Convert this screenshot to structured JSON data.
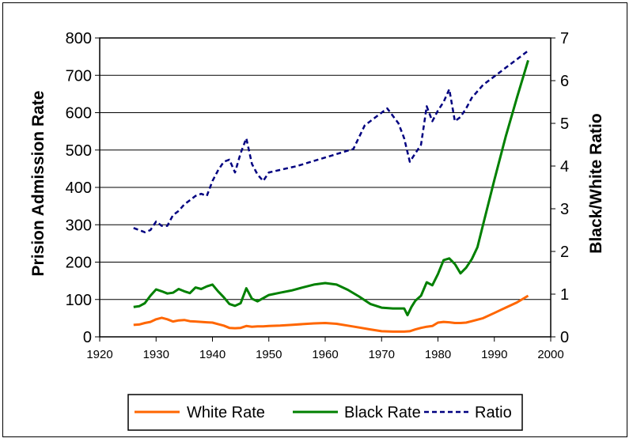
{
  "chart_data": {
    "type": "line",
    "title": "",
    "xlabel": "",
    "ylabel": "Prision Admission Rate",
    "y2label": "Black/White Ratio",
    "xlim": [
      1920,
      2000
    ],
    "ylim": [
      0,
      800
    ],
    "y2lim": [
      0,
      7
    ],
    "x_ticks": [
      1920,
      1930,
      1940,
      1950,
      1960,
      1970,
      1980,
      1990,
      2000
    ],
    "y_ticks": [
      0,
      100,
      200,
      300,
      400,
      500,
      600,
      700,
      800
    ],
    "y2_ticks": [
      0,
      1,
      2,
      3,
      4,
      5,
      6,
      7
    ],
    "grid": "horizontal",
    "legend_position": "bottom",
    "series": [
      {
        "name": "White Rate",
        "axis": "left",
        "color": "#FF6600",
        "style": "solid",
        "x": [
          1926,
          1927,
          1928,
          1929,
          1930,
          1931,
          1932,
          1933,
          1934,
          1935,
          1936,
          1937,
          1938,
          1939,
          1940,
          1941,
          1942,
          1943,
          1944,
          1945,
          1946,
          1947,
          1948,
          1949,
          1950,
          1952,
          1954,
          1956,
          1958,
          1960,
          1962,
          1964,
          1966,
          1968,
          1970,
          1972,
          1974,
          1975,
          1976,
          1977,
          1978,
          1979,
          1980,
          1981,
          1982,
          1983,
          1984,
          1985,
          1986,
          1987,
          1988,
          1990,
          1992,
          1994,
          1996
        ],
        "values": [
          32,
          33,
          37,
          40,
          47,
          51,
          47,
          41,
          44,
          45,
          42,
          41,
          40,
          39,
          38,
          34,
          30,
          24,
          23,
          24,
          29,
          27,
          28,
          28,
          29,
          30,
          32,
          34,
          36,
          37,
          35,
          30,
          25,
          20,
          15,
          14,
          14,
          15,
          20,
          24,
          27,
          29,
          38,
          40,
          39,
          37,
          37,
          38,
          42,
          46,
          50,
          64,
          78,
          92,
          110
        ]
      },
      {
        "name": "Black Rate",
        "axis": "left",
        "color": "#008000",
        "style": "solid",
        "x": [
          1926,
          1927,
          1928,
          1929,
          1930,
          1931,
          1932,
          1933,
          1934,
          1935,
          1936,
          1937,
          1938,
          1939,
          1940,
          1941,
          1942,
          1943,
          1944,
          1945,
          1946,
          1947,
          1948,
          1950,
          1952,
          1954,
          1956,
          1958,
          1960,
          1962,
          1964,
          1966,
          1968,
          1970,
          1972,
          1974,
          1974.6,
          1975.3,
          1976,
          1977,
          1978,
          1979,
          1980,
          1981,
          1982,
          1983,
          1984,
          1985,
          1986,
          1987,
          1988,
          1990,
          1992,
          1994,
          1996
        ],
        "values": [
          80,
          82,
          90,
          110,
          127,
          122,
          116,
          118,
          128,
          122,
          117,
          132,
          128,
          135,
          140,
          122,
          106,
          88,
          83,
          90,
          130,
          102,
          95,
          112,
          118,
          124,
          132,
          140,
          144,
          140,
          126,
          108,
          88,
          78,
          76,
          76,
          58,
          80,
          97,
          110,
          146,
          138,
          168,
          205,
          210,
          195,
          170,
          185,
          208,
          240,
          300,
          420,
          535,
          640,
          740
        ]
      },
      {
        "name": "Ratio",
        "axis": "right",
        "color": "#000080",
        "style": "dashed",
        "x": [
          1926,
          1927,
          1928,
          1929,
          1930,
          1931,
          1932,
          1933,
          1934,
          1935,
          1936,
          1937,
          1938,
          1939,
          1940,
          1941,
          1942,
          1943,
          1944,
          1945,
          1946,
          1947,
          1948,
          1949,
          1950,
          1955,
          1960,
          1965,
          1967,
          1969,
          1971,
          1973,
          1974,
          1975,
          1976,
          1977,
          1978,
          1979,
          1980,
          1981,
          1982,
          1983,
          1984,
          1985,
          1986,
          1988,
          1990,
          1992,
          1994,
          1996
        ],
        "values": [
          2.55,
          2.5,
          2.45,
          2.5,
          2.7,
          2.6,
          2.6,
          2.85,
          2.95,
          3.1,
          3.2,
          3.3,
          3.35,
          3.3,
          3.65,
          3.9,
          4.1,
          4.15,
          3.85,
          4.3,
          4.65,
          4.05,
          3.8,
          3.65,
          3.85,
          4.0,
          4.2,
          4.4,
          4.95,
          5.15,
          5.35,
          5.0,
          4.65,
          4.1,
          4.3,
          4.5,
          5.4,
          5.05,
          5.3,
          5.5,
          5.8,
          5.05,
          5.15,
          5.35,
          5.6,
          5.9,
          6.1,
          6.3,
          6.5,
          6.7
        ]
      }
    ]
  }
}
